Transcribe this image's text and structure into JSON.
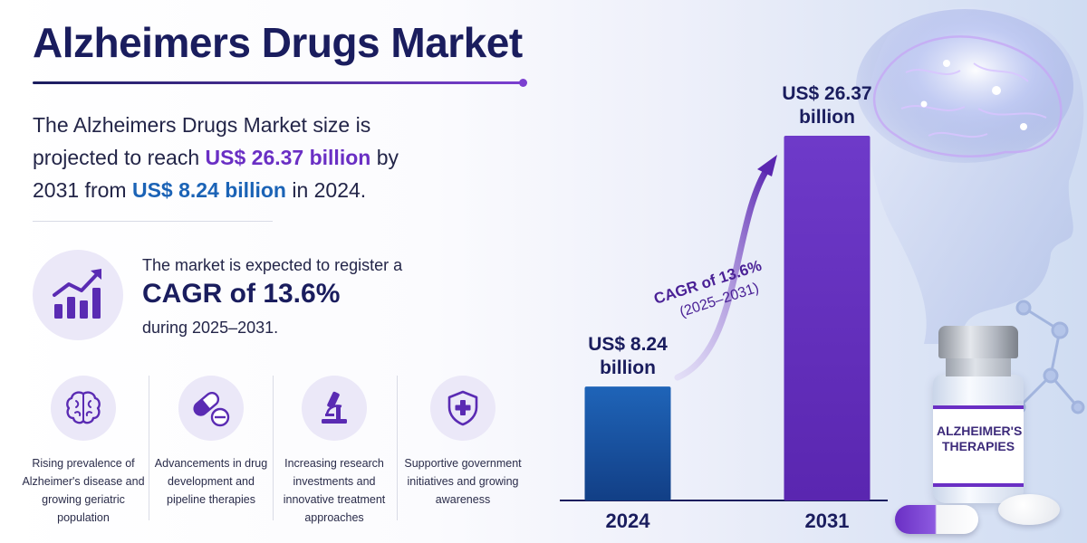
{
  "title": "Alzheimers Drugs Market",
  "intro": {
    "pre": "The Alzheimers Drugs Market size is projected to reach ",
    "value_2031": "US$ 26.37 billion",
    "mid": " by 2031 from ",
    "value_2024": "US$ 8.24 billion",
    "post": " in 2024."
  },
  "cagr_block": {
    "lead": "The market is expected to register a",
    "headline": "CAGR of 13.6%",
    "period": "during 2025–2031."
  },
  "drivers": [
    {
      "text": "Rising prevalence of Alzheimer's disease and growing geriatric population",
      "icon": "brain-icon"
    },
    {
      "text": "Advancements in drug development and pipeline therapies",
      "icon": "pill-capsule-icon"
    },
    {
      "text": "Increasing research investments and innovative treatment approaches",
      "icon": "microscope-icon"
    },
    {
      "text": "Supportive government initiatives and growing awareness",
      "icon": "shield-cross-icon"
    }
  ],
  "vial": {
    "line1": "ALZHEIMER'S",
    "line2": "THERAPIES"
  },
  "colors": {
    "title": "#1a1d5e",
    "accent_purple": "#6a2fc4",
    "accent_blue": "#1b63b6",
    "bar_2024": "#1d5aa5",
    "bar_2031": "#6a35c2",
    "icon_bg": "#ebe8f8"
  },
  "chart_data": {
    "type": "bar",
    "categories": [
      "2024",
      "2031"
    ],
    "values": [
      8.24,
      26.37
    ],
    "unit": "US$ billion",
    "data_labels": [
      [
        "US$ 8.24",
        "billion"
      ],
      [
        "US$ 26.37",
        "billion"
      ]
    ],
    "annotation": {
      "line1": "CAGR of 13.6%",
      "line2": "(2025–2031)"
    },
    "title": "",
    "xlabel": "",
    "ylabel": "",
    "ylim": [
      0,
      26.37
    ],
    "grid": false,
    "legend": "none"
  }
}
